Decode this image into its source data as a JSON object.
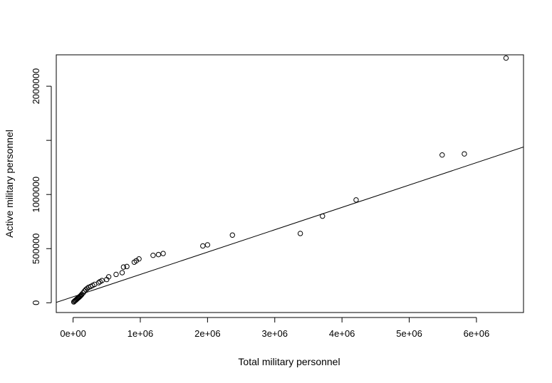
{
  "chart_data": {
    "type": "scatter",
    "title": "",
    "xlabel": "Total military personnel",
    "ylabel": "Active military personnel",
    "xlim": [
      -250000,
      6700000
    ],
    "ylim": [
      -90000,
      2290000
    ],
    "x_ticks": [
      0,
      1000000,
      2000000,
      3000000,
      4000000,
      5000000,
      6000000
    ],
    "x_tick_labels": [
      "0e+00",
      "1e+06",
      "2e+06",
      "3e+06",
      "4e+06",
      "5e+06",
      "6e+06"
    ],
    "y_ticks": [
      0,
      500000,
      1000000,
      1500000,
      2000000
    ],
    "y_tick_labels": [
      "0",
      "500000",
      "1000000",
      "",
      "2000000"
    ],
    "grid": false,
    "legend": "none",
    "point_style": "open-circle",
    "fit_line": {
      "intercept": 55000,
      "slope": 0.2065
    },
    "points": [
      [
        10000,
        8000
      ],
      [
        20000,
        14000
      ],
      [
        30000,
        20000
      ],
      [
        40000,
        24000
      ],
      [
        50000,
        30000
      ],
      [
        60000,
        36000
      ],
      [
        70000,
        42000
      ],
      [
        80000,
        46000
      ],
      [
        90000,
        52000
      ],
      [
        100000,
        58000
      ],
      [
        110000,
        64000
      ],
      [
        120000,
        70000
      ],
      [
        130000,
        78000
      ],
      [
        150000,
        92000
      ],
      [
        170000,
        108000
      ],
      [
        190000,
        122000
      ],
      [
        210000,
        132000
      ],
      [
        230000,
        142000
      ],
      [
        260000,
        150000
      ],
      [
        290000,
        160000
      ],
      [
        320000,
        170000
      ],
      [
        380000,
        185000
      ],
      [
        400000,
        195000
      ],
      [
        430000,
        205000
      ],
      [
        500000,
        215000
      ],
      [
        530000,
        240000
      ],
      [
        640000,
        262000
      ],
      [
        730000,
        278000
      ],
      [
        750000,
        330000
      ],
      [
        800000,
        335000
      ],
      [
        910000,
        375000
      ],
      [
        940000,
        388000
      ],
      [
        980000,
        405000
      ],
      [
        1190000,
        438000
      ],
      [
        1270000,
        445000
      ],
      [
        1340000,
        455000
      ],
      [
        1930000,
        525000
      ],
      [
        2000000,
        535000
      ],
      [
        2370000,
        625000
      ],
      [
        3380000,
        640000
      ],
      [
        3710000,
        800000
      ],
      [
        4210000,
        950000
      ],
      [
        5490000,
        1365000
      ],
      [
        5820000,
        1375000
      ],
      [
        6440000,
        2260000
      ]
    ]
  }
}
